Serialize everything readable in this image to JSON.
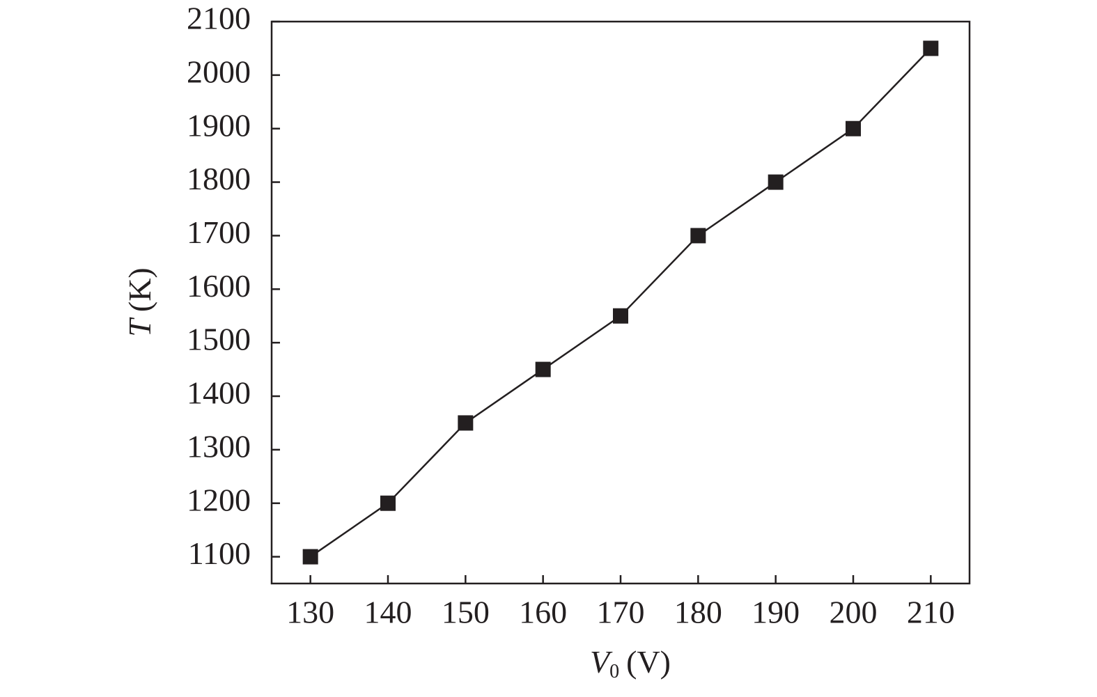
{
  "chart_data": {
    "type": "line",
    "x": [
      130,
      140,
      150,
      160,
      170,
      180,
      190,
      200,
      210
    ],
    "series": [
      {
        "color": "#231f20",
        "values": [
          1100,
          1200,
          1350,
          1450,
          1550,
          1700,
          1800,
          1900,
          2050
        ]
      }
    ],
    "xlim": [
      125,
      215
    ],
    "xticks": [
      130,
      140,
      150,
      160,
      170,
      180,
      190,
      200,
      210
    ],
    "ylim": [
      1050,
      2100
    ],
    "yticks": [
      1100,
      1200,
      1300,
      1400,
      1500,
      1600,
      1700,
      1800,
      1900,
      2000,
      2100
    ],
    "xlabel": {
      "symbol": "V",
      "subscript": "0",
      "unit": "(V)"
    },
    "ylabel": {
      "symbol": "T",
      "unit": "(K)"
    },
    "marker": "square",
    "grid": false
  }
}
